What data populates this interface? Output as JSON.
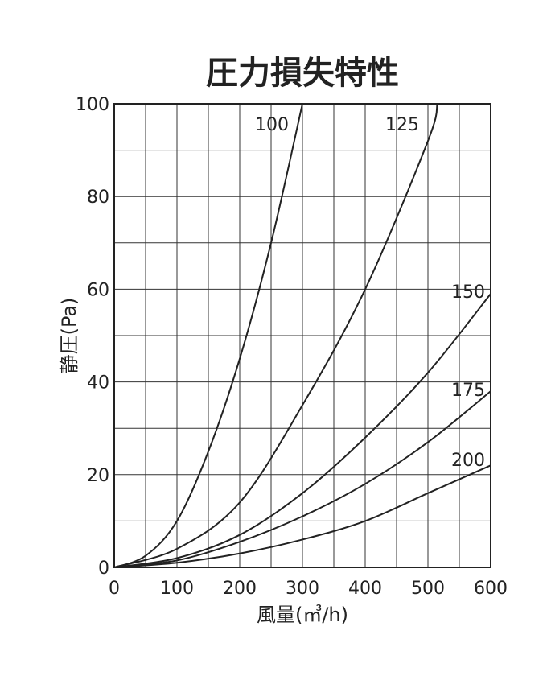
{
  "chart_data": {
    "type": "line",
    "title": "圧力損失特性",
    "xlabel": "風量(㎥/h)",
    "ylabel": "静圧(Pa)",
    "xlim": [
      0,
      600
    ],
    "ylim": [
      0,
      100
    ],
    "x_ticks": [
      0,
      100,
      200,
      300,
      400,
      500,
      600
    ],
    "y_ticks": [
      0,
      20,
      40,
      60,
      80,
      100
    ],
    "x_ticks_labels": [
      "0",
      "100",
      "200",
      "300",
      "400",
      "500",
      "600"
    ],
    "y_ticks_labels": [
      "0",
      "20",
      "40",
      "60",
      "80",
      "100"
    ],
    "grid": true,
    "grid_x_step": 50,
    "grid_y_step": 10,
    "series": [
      {
        "name": "100",
        "x": [
          0,
          50,
          100,
          150,
          200,
          250,
          300
        ],
        "y": [
          0,
          2.5,
          10,
          25,
          45,
          70,
          100
        ]
      },
      {
        "name": "125",
        "x": [
          0,
          100,
          200,
          300,
          400,
          500,
          515
        ],
        "y": [
          0,
          4,
          14,
          35,
          60,
          92,
          100
        ]
      },
      {
        "name": "150",
        "x": [
          0,
          100,
          200,
          300,
          400,
          500,
          600
        ],
        "y": [
          0,
          2,
          7,
          16,
          28,
          42,
          59
        ]
      },
      {
        "name": "175",
        "x": [
          0,
          100,
          200,
          300,
          400,
          500,
          600
        ],
        "y": [
          0,
          1.5,
          5.5,
          11,
          18,
          27,
          38
        ]
      },
      {
        "name": "200",
        "x": [
          0,
          100,
          200,
          300,
          400,
          500,
          600
        ],
        "y": [
          0,
          1,
          3,
          6,
          10,
          16,
          22
        ]
      }
    ]
  }
}
